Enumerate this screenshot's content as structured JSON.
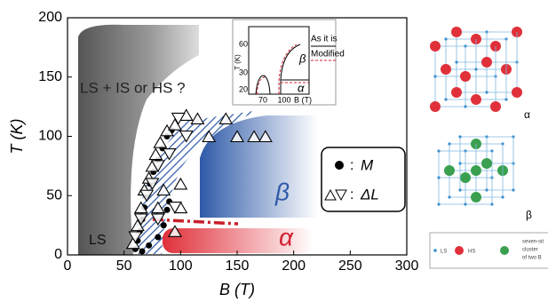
{
  "chart_data": {
    "type": "scatter",
    "xlabel": "B (T)",
    "ylabel": "T (K)",
    "xlim": [
      0,
      300
    ],
    "ylim": [
      0,
      200
    ],
    "xticks": [
      0,
      50,
      100,
      150,
      200,
      250,
      300
    ],
    "yticks": [
      0,
      50,
      100,
      150,
      200
    ],
    "series": [
      {
        "name": "M",
        "marker": "circle",
        "color": "#000000",
        "x": [
          60,
          62,
          64,
          66,
          68,
          70,
          73,
          76,
          80,
          84,
          88,
          92,
          66,
          72,
          80,
          85,
          88,
          90
        ],
        "values": [
          5,
          12,
          20,
          30,
          40,
          50,
          60,
          70,
          80,
          90,
          100,
          105,
          3,
          8,
          15,
          25,
          38,
          45
        ]
      },
      {
        "name": "ΔL",
        "marker": "triangle",
        "color": "#ffffff",
        "x": [
          58,
          62,
          65,
          68,
          72,
          75,
          78,
          82,
          88,
          95,
          105,
          115,
          125,
          140,
          150,
          165,
          175,
          100,
          85,
          100,
          80,
          95,
          60,
          65,
          70,
          75,
          80,
          90,
          98,
          105,
          80,
          95
        ],
        "values": [
          10,
          25,
          40,
          55,
          65,
          75,
          85,
          95,
          105,
          110,
          118,
          115,
          100,
          115,
          100,
          100,
          100,
          60,
          55,
          40,
          40,
          20,
          15,
          30,
          50,
          60,
          75,
          85,
          115,
          100,
          30,
          40
        ],
        "markers": [
          "up",
          "up",
          "up",
          "up",
          "up",
          "up",
          "up",
          "up",
          "up",
          "up",
          "up",
          "up",
          "up",
          "up",
          "up",
          "up",
          "up",
          "up",
          "up",
          "up",
          "up",
          "up",
          "down",
          "down",
          "down",
          "down",
          "down",
          "down",
          "down",
          "down",
          "down",
          "down"
        ]
      }
    ],
    "region_labels": [
      "LS + IS or HS ?",
      "LS",
      "β",
      "α"
    ],
    "inset": {
      "ylabel": "T (K)",
      "xlabel": "B (T)",
      "yticks": [
        20,
        30,
        60
      ],
      "xticks": [
        70,
        100
      ],
      "legend": [
        "As it is",
        "Modified"
      ],
      "labels": [
        "β",
        "α"
      ]
    },
    "structures": {
      "labels": [
        "α",
        "β"
      ],
      "legend": [
        "LS",
        "HS",
        "seven-sit",
        "cluster",
        "of two B"
      ]
    }
  }
}
